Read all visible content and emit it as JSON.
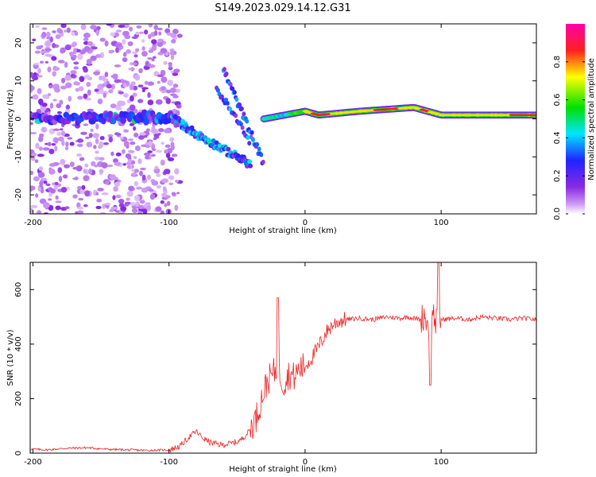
{
  "figure_title": "S149.2023.029.14.12.G31",
  "chart_data": [
    {
      "type": "heatmap",
      "title": "",
      "xlabel": "Height of straight line (km)",
      "ylabel": "Frequency (Hz)",
      "xlim": [
        -202,
        170
      ],
      "ylim": [
        -25,
        25
      ],
      "xticks": [
        -200,
        -100,
        0,
        100
      ],
      "yticks": [
        -20,
        -10,
        0,
        10,
        20
      ],
      "colorbar": {
        "label": "Normalized spectral amplitude",
        "range": [
          0,
          1
        ],
        "ticks": [
          0.0,
          0.2,
          0.4,
          0.6,
          0.8
        ],
        "tick_labels": [
          "0.0",
          "0.2",
          "0.4",
          "0.6",
          "0.8"
        ],
        "colormap": "rainbow (white → violet → blue → cyan → green → yellow → red → magenta)"
      },
      "features": [
        {
          "description": "scattered violet noise",
          "x_range": [
            -202,
            -100
          ],
          "freq_range": [
            -25,
            25
          ]
        },
        {
          "description": "main carrier track near 0 Hz",
          "x_range": [
            -202,
            -100
          ],
          "freq": [
            0,
            1
          ]
        },
        {
          "description": "descending track",
          "x": [
            -100,
            -80,
            -60,
            -40
          ],
          "freq": [
            1,
            -4,
            -8,
            -12
          ]
        },
        {
          "description": "steep features",
          "x": [
            -60,
            -50,
            -40,
            -30
          ],
          "freq": [
            13,
            6,
            -2,
            -12
          ]
        },
        {
          "description": "strong carrier line",
          "x": [
            -30,
            0,
            10,
            40,
            80,
            100,
            170
          ],
          "freq": [
            0,
            2,
            1,
            2,
            3,
            1,
            1
          ]
        }
      ],
      "grid": false
    },
    {
      "type": "line",
      "title": "",
      "xlabel": "Height of straight line (km)",
      "ylabel": "SNR (10 * v/v)",
      "xlim": [
        -202,
        170
      ],
      "ylim": [
        0,
        700
      ],
      "xticks": [
        -200,
        -100,
        0,
        100
      ],
      "yticks": [
        0,
        200,
        400,
        600
      ],
      "grid": false,
      "series": [
        {
          "color": "#ee2222",
          "x": [
            -202,
            -190,
            -175,
            -160,
            -145,
            -130,
            -115,
            -100,
            -92,
            -85,
            -80,
            -75,
            -70,
            -62,
            -55,
            -48,
            -42,
            -36,
            -32,
            -28,
            -24,
            -20,
            -16,
            -12,
            -8,
            -4,
            0,
            5,
            10,
            15,
            20,
            25,
            30,
            40,
            50,
            60,
            70,
            75,
            80,
            85,
            88,
            90,
            92,
            94,
            96,
            98,
            100,
            110,
            120,
            130,
            140,
            150,
            160,
            170
          ],
          "y": [
            15,
            12,
            18,
            20,
            14,
            12,
            10,
            12,
            25,
            60,
            80,
            55,
            40,
            30,
            35,
            45,
            75,
            130,
            200,
            260,
            290,
            310,
            255,
            290,
            280,
            310,
            320,
            350,
            390,
            440,
            470,
            485,
            490,
            495,
            490,
            500,
            495,
            500,
            495,
            490,
            510,
            470,
            440,
            520,
            480,
            500,
            490,
            495,
            490,
            500,
            495,
            490,
            495,
            490
          ]
        }
      ],
      "annotations": [
        {
          "x": -20,
          "y": 570,
          "description": "spike"
        },
        {
          "x": 92,
          "y": 650,
          "description": "spike"
        },
        {
          "x": 98,
          "y": 700,
          "description": "spike"
        },
        {
          "x": 92,
          "y": 250,
          "description": "dip"
        }
      ]
    }
  ]
}
